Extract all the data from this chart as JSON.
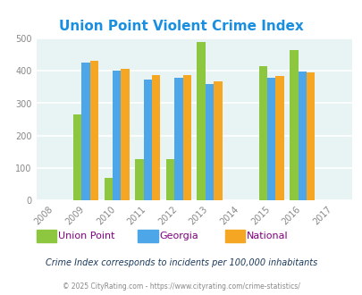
{
  "title": "Union Point Violent Crime Index",
  "all_years": [
    2008,
    2009,
    2010,
    2011,
    2012,
    2013,
    2014,
    2015,
    2016,
    2017
  ],
  "data_years": [
    2009,
    2010,
    2011,
    2012,
    2013,
    2015,
    2016
  ],
  "union_point": [
    265,
    70,
    127,
    127,
    490,
    413,
    463
  ],
  "georgia": [
    425,
    401,
    372,
    379,
    360,
    379,
    399
  ],
  "national": [
    432,
    405,
    387,
    387,
    367,
    383,
    395
  ],
  "bar_width": 0.27,
  "colors": {
    "union_point": "#8dc63f",
    "georgia": "#4da6e8",
    "national": "#f5a623"
  },
  "ylim": [
    0,
    500
  ],
  "yticks": [
    0,
    100,
    200,
    300,
    400,
    500
  ],
  "bg_color": "#e8f4f4",
  "grid_color": "#ffffff",
  "title_color": "#1a8fe0",
  "legend_labels": [
    "Union Point",
    "Georgia",
    "National"
  ],
  "legend_colors": [
    "#8dc63f",
    "#4da6e8",
    "#f5a623"
  ],
  "subtitle": "Crime Index corresponds to incidents per 100,000 inhabitants",
  "footer": "© 2025 CityRating.com - https://www.cityrating.com/crime-statistics/",
  "subtitle_color": "#1a3a5c",
  "footer_color": "#888888",
  "legend_label_color": "#800080",
  "tick_color": "#888888"
}
